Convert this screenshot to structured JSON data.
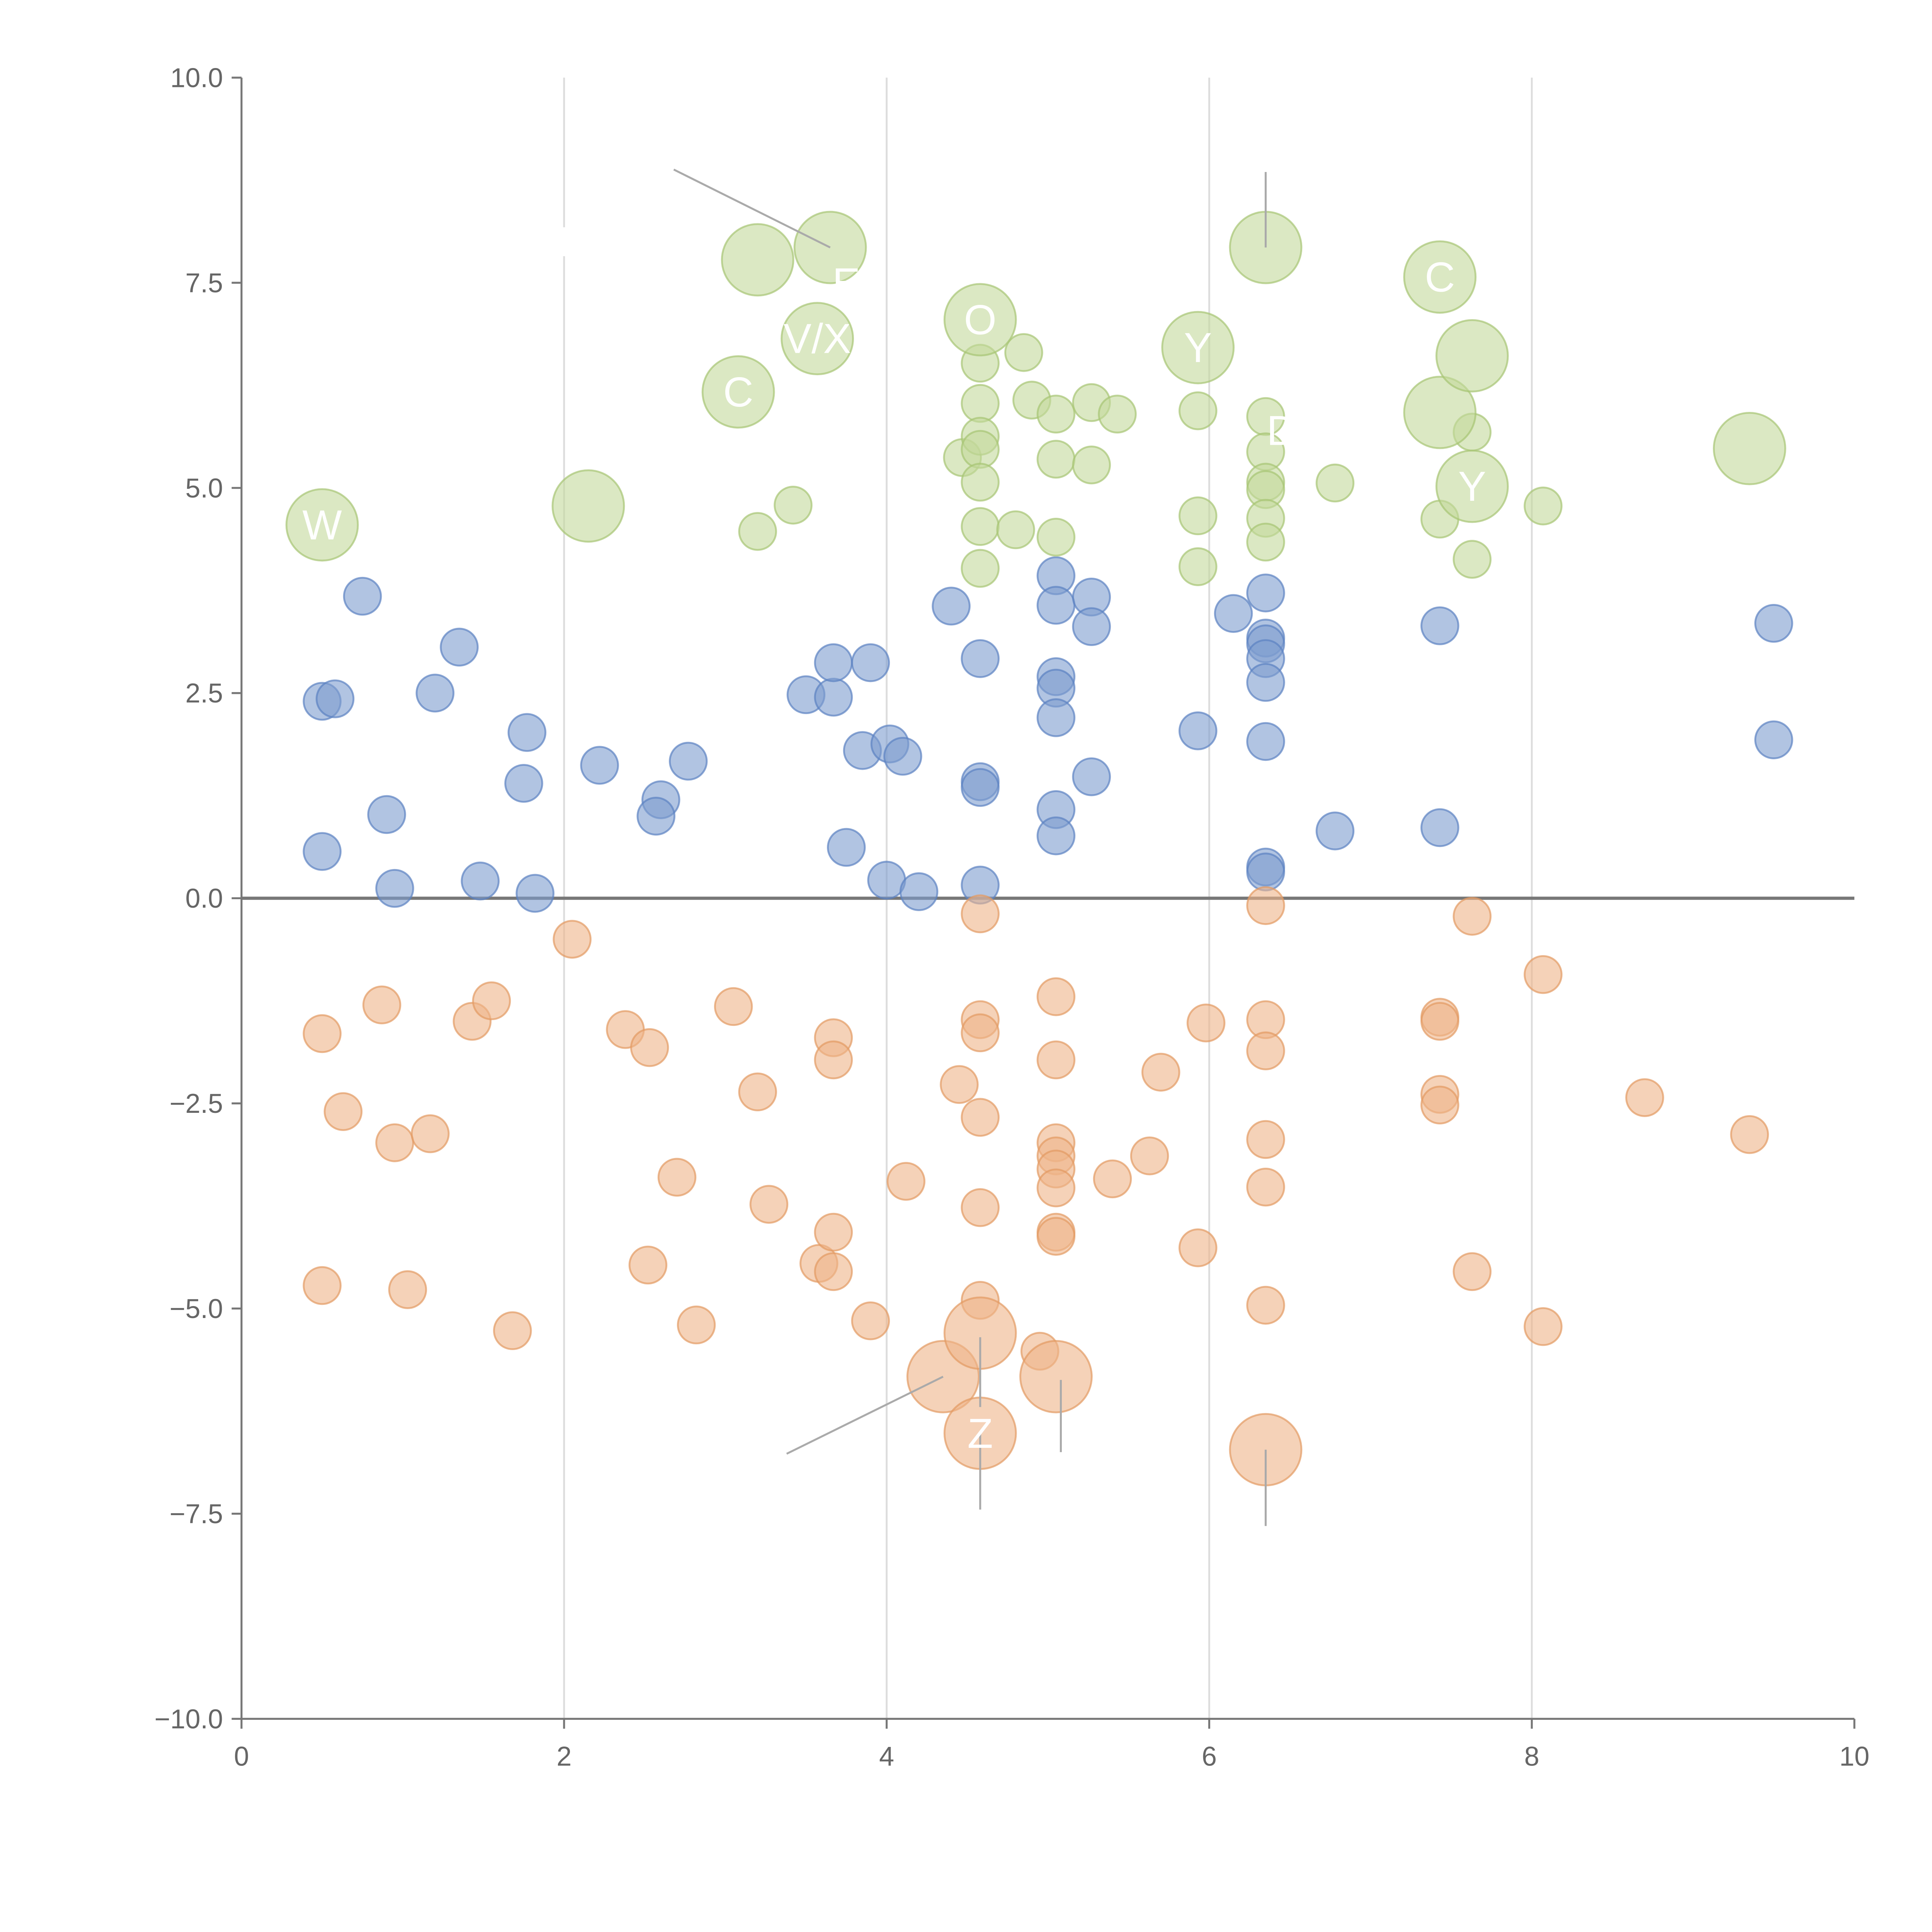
{
  "chart_data": {
    "type": "scatter",
    "title": "",
    "xlabel": "",
    "ylabel": "",
    "xlim": [
      0,
      10
    ],
    "ylim": [
      -10,
      10
    ],
    "x_ticks": [
      0,
      2,
      4,
      6,
      8,
      10
    ],
    "y_ticks": [
      -10,
      -7.5,
      -5,
      -2.5,
      0,
      2.5,
      5,
      7.5,
      10
    ],
    "x_tick_labels": [
      "0",
      "2",
      "4",
      "6",
      "8",
      "10"
    ],
    "y_tick_labels": [
      "−10.0",
      "−7.5",
      "−5.0",
      "−2.5",
      "0.0",
      "2.5",
      "5.0",
      "7.5",
      "10.0"
    ],
    "grid": "vertical",
    "zero_line": true,
    "series": [
      {
        "name": "blue",
        "color": "#7d9ccf",
        "stroke": "#5b82c2",
        "points": [
          [
            0.5,
            2.4
          ],
          [
            0.58,
            2.43
          ],
          [
            0.75,
            3.68
          ],
          [
            1.2,
            2.5
          ],
          [
            1.35,
            3.06
          ],
          [
            0.9,
            1.02
          ],
          [
            0.5,
            0.57
          ],
          [
            0.95,
            0.12
          ],
          [
            1.48,
            0.21
          ],
          [
            1.82,
            0.06
          ],
          [
            1.75,
            1.4
          ],
          [
            1.77,
            2.02
          ],
          [
            2.22,
            1.62
          ],
          [
            2.6,
            1.2
          ],
          [
            2.57,
            1.0
          ],
          [
            2.77,
            1.67
          ],
          [
            3.5,
            2.48
          ],
          [
            3.67,
            2.45
          ],
          [
            3.67,
            2.87
          ],
          [
            3.9,
            2.87
          ],
          [
            3.85,
            1.8
          ],
          [
            4.02,
            1.88
          ],
          [
            4.1,
            1.73
          ],
          [
            3.75,
            0.62
          ],
          [
            4.0,
            0.22
          ],
          [
            4.2,
            0.08
          ],
          [
            4.4,
            3.56
          ],
          [
            4.58,
            2.92
          ],
          [
            4.58,
            1.42
          ],
          [
            4.58,
            1.35
          ],
          [
            4.58,
            0.16
          ],
          [
            5.05,
            3.93
          ],
          [
            5.05,
            3.57
          ],
          [
            5.27,
            3.67
          ],
          [
            5.27,
            3.31
          ],
          [
            5.05,
            2.7
          ],
          [
            5.05,
            2.56
          ],
          [
            5.05,
            2.2
          ],
          [
            5.27,
            1.48
          ],
          [
            5.05,
            1.08
          ],
          [
            5.05,
            0.76
          ],
          [
            5.93,
            2.04
          ],
          [
            6.15,
            3.47
          ],
          [
            6.35,
            3.72
          ],
          [
            6.35,
            3.17
          ],
          [
            6.35,
            3.1
          ],
          [
            6.35,
            2.92
          ],
          [
            6.35,
            2.63
          ],
          [
            6.35,
            1.91
          ],
          [
            6.35,
            0.38
          ],
          [
            6.35,
            0.32
          ],
          [
            6.78,
            0.82
          ],
          [
            7.43,
            3.32
          ],
          [
            7.43,
            0.86
          ],
          [
            9.5,
            3.35
          ],
          [
            9.5,
            1.93
          ]
        ]
      },
      {
        "name": "orange",
        "color": "#eeb488",
        "stroke": "#e39a62",
        "points": [
          [
            0.5,
            -1.65
          ],
          [
            0.63,
            -2.6
          ],
          [
            0.87,
            -1.3
          ],
          [
            0.95,
            -2.98
          ],
          [
            1.17,
            -2.87
          ],
          [
            1.43,
            -1.5
          ],
          [
            1.55,
            -1.25
          ],
          [
            0.5,
            -4.72
          ],
          [
            1.03,
            -4.77
          ],
          [
            1.68,
            -5.27
          ],
          [
            2.05,
            -0.5
          ],
          [
            2.38,
            -1.6
          ],
          [
            2.53,
            -1.82
          ],
          [
            2.52,
            -4.47
          ],
          [
            2.7,
            -3.4
          ],
          [
            2.82,
            -5.2
          ],
          [
            3.05,
            -1.32
          ],
          [
            3.2,
            -2.36
          ],
          [
            3.27,
            -3.73
          ],
          [
            3.58,
            -4.45
          ],
          [
            3.67,
            -1.7
          ],
          [
            3.67,
            -1.97
          ],
          [
            3.67,
            -4.07
          ],
          [
            3.67,
            -4.55
          ],
          [
            3.9,
            -5.15
          ],
          [
            4.12,
            -3.45
          ],
          [
            4.45,
            -2.27
          ],
          [
            4.58,
            -0.19
          ],
          [
            4.58,
            -1.48
          ],
          [
            4.58,
            -1.64
          ],
          [
            4.58,
            -2.67
          ],
          [
            4.58,
            -3.77
          ],
          [
            4.58,
            -4.9
          ],
          [
            4.95,
            -5.52
          ],
          [
            5.05,
            -1.2
          ],
          [
            5.05,
            -1.97
          ],
          [
            5.05,
            -2.98
          ],
          [
            5.05,
            -3.14
          ],
          [
            5.05,
            -3.3
          ],
          [
            5.05,
            -3.53
          ],
          [
            5.05,
            -4.07
          ],
          [
            5.05,
            -4.12
          ],
          [
            5.4,
            -3.42
          ],
          [
            5.63,
            -3.14
          ],
          [
            5.7,
            -2.12
          ],
          [
            5.98,
            -1.52
          ],
          [
            5.93,
            -4.26
          ],
          [
            6.35,
            -0.09
          ],
          [
            6.35,
            -1.48
          ],
          [
            6.35,
            -1.86
          ],
          [
            6.35,
            -2.94
          ],
          [
            6.35,
            -3.52
          ],
          [
            6.35,
            -4.96
          ],
          [
            7.43,
            -1.45
          ],
          [
            7.43,
            -1.5
          ],
          [
            7.43,
            -2.39
          ],
          [
            7.43,
            -2.52
          ],
          [
            7.63,
            -0.22
          ],
          [
            7.63,
            -4.55
          ],
          [
            8.07,
            -0.93
          ],
          [
            8.07,
            -5.22
          ],
          [
            8.7,
            -2.43
          ],
          [
            9.35,
            -2.88
          ]
        ]
      },
      {
        "name": "green",
        "color": "#c3d89b",
        "stroke": "#a7c474",
        "points": [
          [
            3.2,
            4.47
          ],
          [
            3.42,
            4.79
          ],
          [
            4.47,
            5.37
          ],
          [
            4.58,
            6.52
          ],
          [
            4.58,
            6.03
          ],
          [
            4.58,
            5.63
          ],
          [
            4.58,
            5.47
          ],
          [
            4.58,
            5.07
          ],
          [
            4.58,
            4.53
          ],
          [
            4.58,
            4.02
          ],
          [
            4.8,
            4.49
          ],
          [
            4.85,
            6.65
          ],
          [
            4.9,
            6.07
          ],
          [
            5.05,
            5.9
          ],
          [
            5.05,
            5.35
          ],
          [
            5.05,
            4.4
          ],
          [
            5.27,
            6.04
          ],
          [
            5.27,
            5.28
          ],
          [
            5.43,
            5.9
          ],
          [
            5.93,
            5.94
          ],
          [
            5.93,
            4.66
          ],
          [
            5.93,
            4.04
          ],
          [
            6.35,
            5.87
          ],
          [
            6.35,
            5.44
          ],
          [
            6.35,
            5.07
          ],
          [
            6.35,
            4.98
          ],
          [
            6.35,
            4.63
          ],
          [
            6.35,
            4.34
          ],
          [
            6.78,
            5.06
          ],
          [
            7.43,
            4.62
          ],
          [
            7.63,
            5.68
          ],
          [
            7.63,
            4.13
          ],
          [
            8.07,
            4.78
          ]
        ]
      }
    ],
    "bubbles": [
      {
        "series": "green",
        "x": 0.5,
        "y": 4.55,
        "label": "W"
      },
      {
        "series": "green",
        "x": 2.15,
        "y": 4.78,
        "label": ""
      },
      {
        "series": "green",
        "x": 3.08,
        "y": 6.17,
        "label": "C"
      },
      {
        "series": "green",
        "x": 3.2,
        "y": 7.78,
        "label": ""
      },
      {
        "series": "green",
        "x": 3.57,
        "y": 6.82,
        "label": "V/X"
      },
      {
        "series": "green",
        "x": 3.65,
        "y": 7.93,
        "label": ""
      },
      {
        "series": "green",
        "x": 4.58,
        "y": 7.05,
        "label": "O"
      },
      {
        "series": "green",
        "x": 5.93,
        "y": 6.71,
        "label": "Y"
      },
      {
        "series": "green",
        "x": 6.35,
        "y": 7.93,
        "label": ""
      },
      {
        "series": "green",
        "x": 7.43,
        "y": 7.57,
        "label": "C"
      },
      {
        "series": "green",
        "x": 7.43,
        "y": 5.92,
        "label": ""
      },
      {
        "series": "green",
        "x": 7.63,
        "y": 6.61,
        "label": ""
      },
      {
        "series": "green",
        "x": 7.63,
        "y": 5.02,
        "label": "Y"
      },
      {
        "series": "green",
        "x": 9.35,
        "y": 5.48,
        "label": ""
      },
      {
        "series": "orange",
        "x": 4.35,
        "y": -5.83,
        "label": ""
      },
      {
        "series": "orange",
        "x": 4.58,
        "y": -5.3,
        "label": ""
      },
      {
        "series": "orange",
        "x": 4.58,
        "y": -6.52,
        "label": "Z"
      },
      {
        "series": "orange",
        "x": 5.05,
        "y": -5.83,
        "label": ""
      },
      {
        "series": "orange",
        "x": 6.35,
        "y": -6.72,
        "label": ""
      }
    ],
    "annotations": [
      {
        "text": "I",
        "x": 2.0,
        "y": 8.0
      },
      {
        "text": "E",
        "x": 3.75,
        "y": 7.5
      },
      {
        "text": "D",
        "x": 6.45,
        "y": 5.7
      }
    ],
    "leaders": [
      {
        "x1": 2.68,
        "y1": 8.88,
        "x2": 3.65,
        "y2": 7.93
      },
      {
        "x1": 6.35,
        "y1": 8.85,
        "x2": 6.35,
        "y2": 7.93
      },
      {
        "x1": 3.38,
        "y1": -6.77,
        "x2": 4.35,
        "y2": -5.83
      },
      {
        "x1": 4.58,
        "y1": -5.35,
        "x2": 4.58,
        "y2": -6.2
      },
      {
        "x1": 4.58,
        "y1": -6.52,
        "x2": 4.58,
        "y2": -7.45
      },
      {
        "x1": 5.08,
        "y1": -5.87,
        "x2": 5.08,
        "y2": -6.75
      },
      {
        "x1": 6.35,
        "y1": -6.72,
        "x2": 6.35,
        "y2": -7.65
      }
    ]
  }
}
